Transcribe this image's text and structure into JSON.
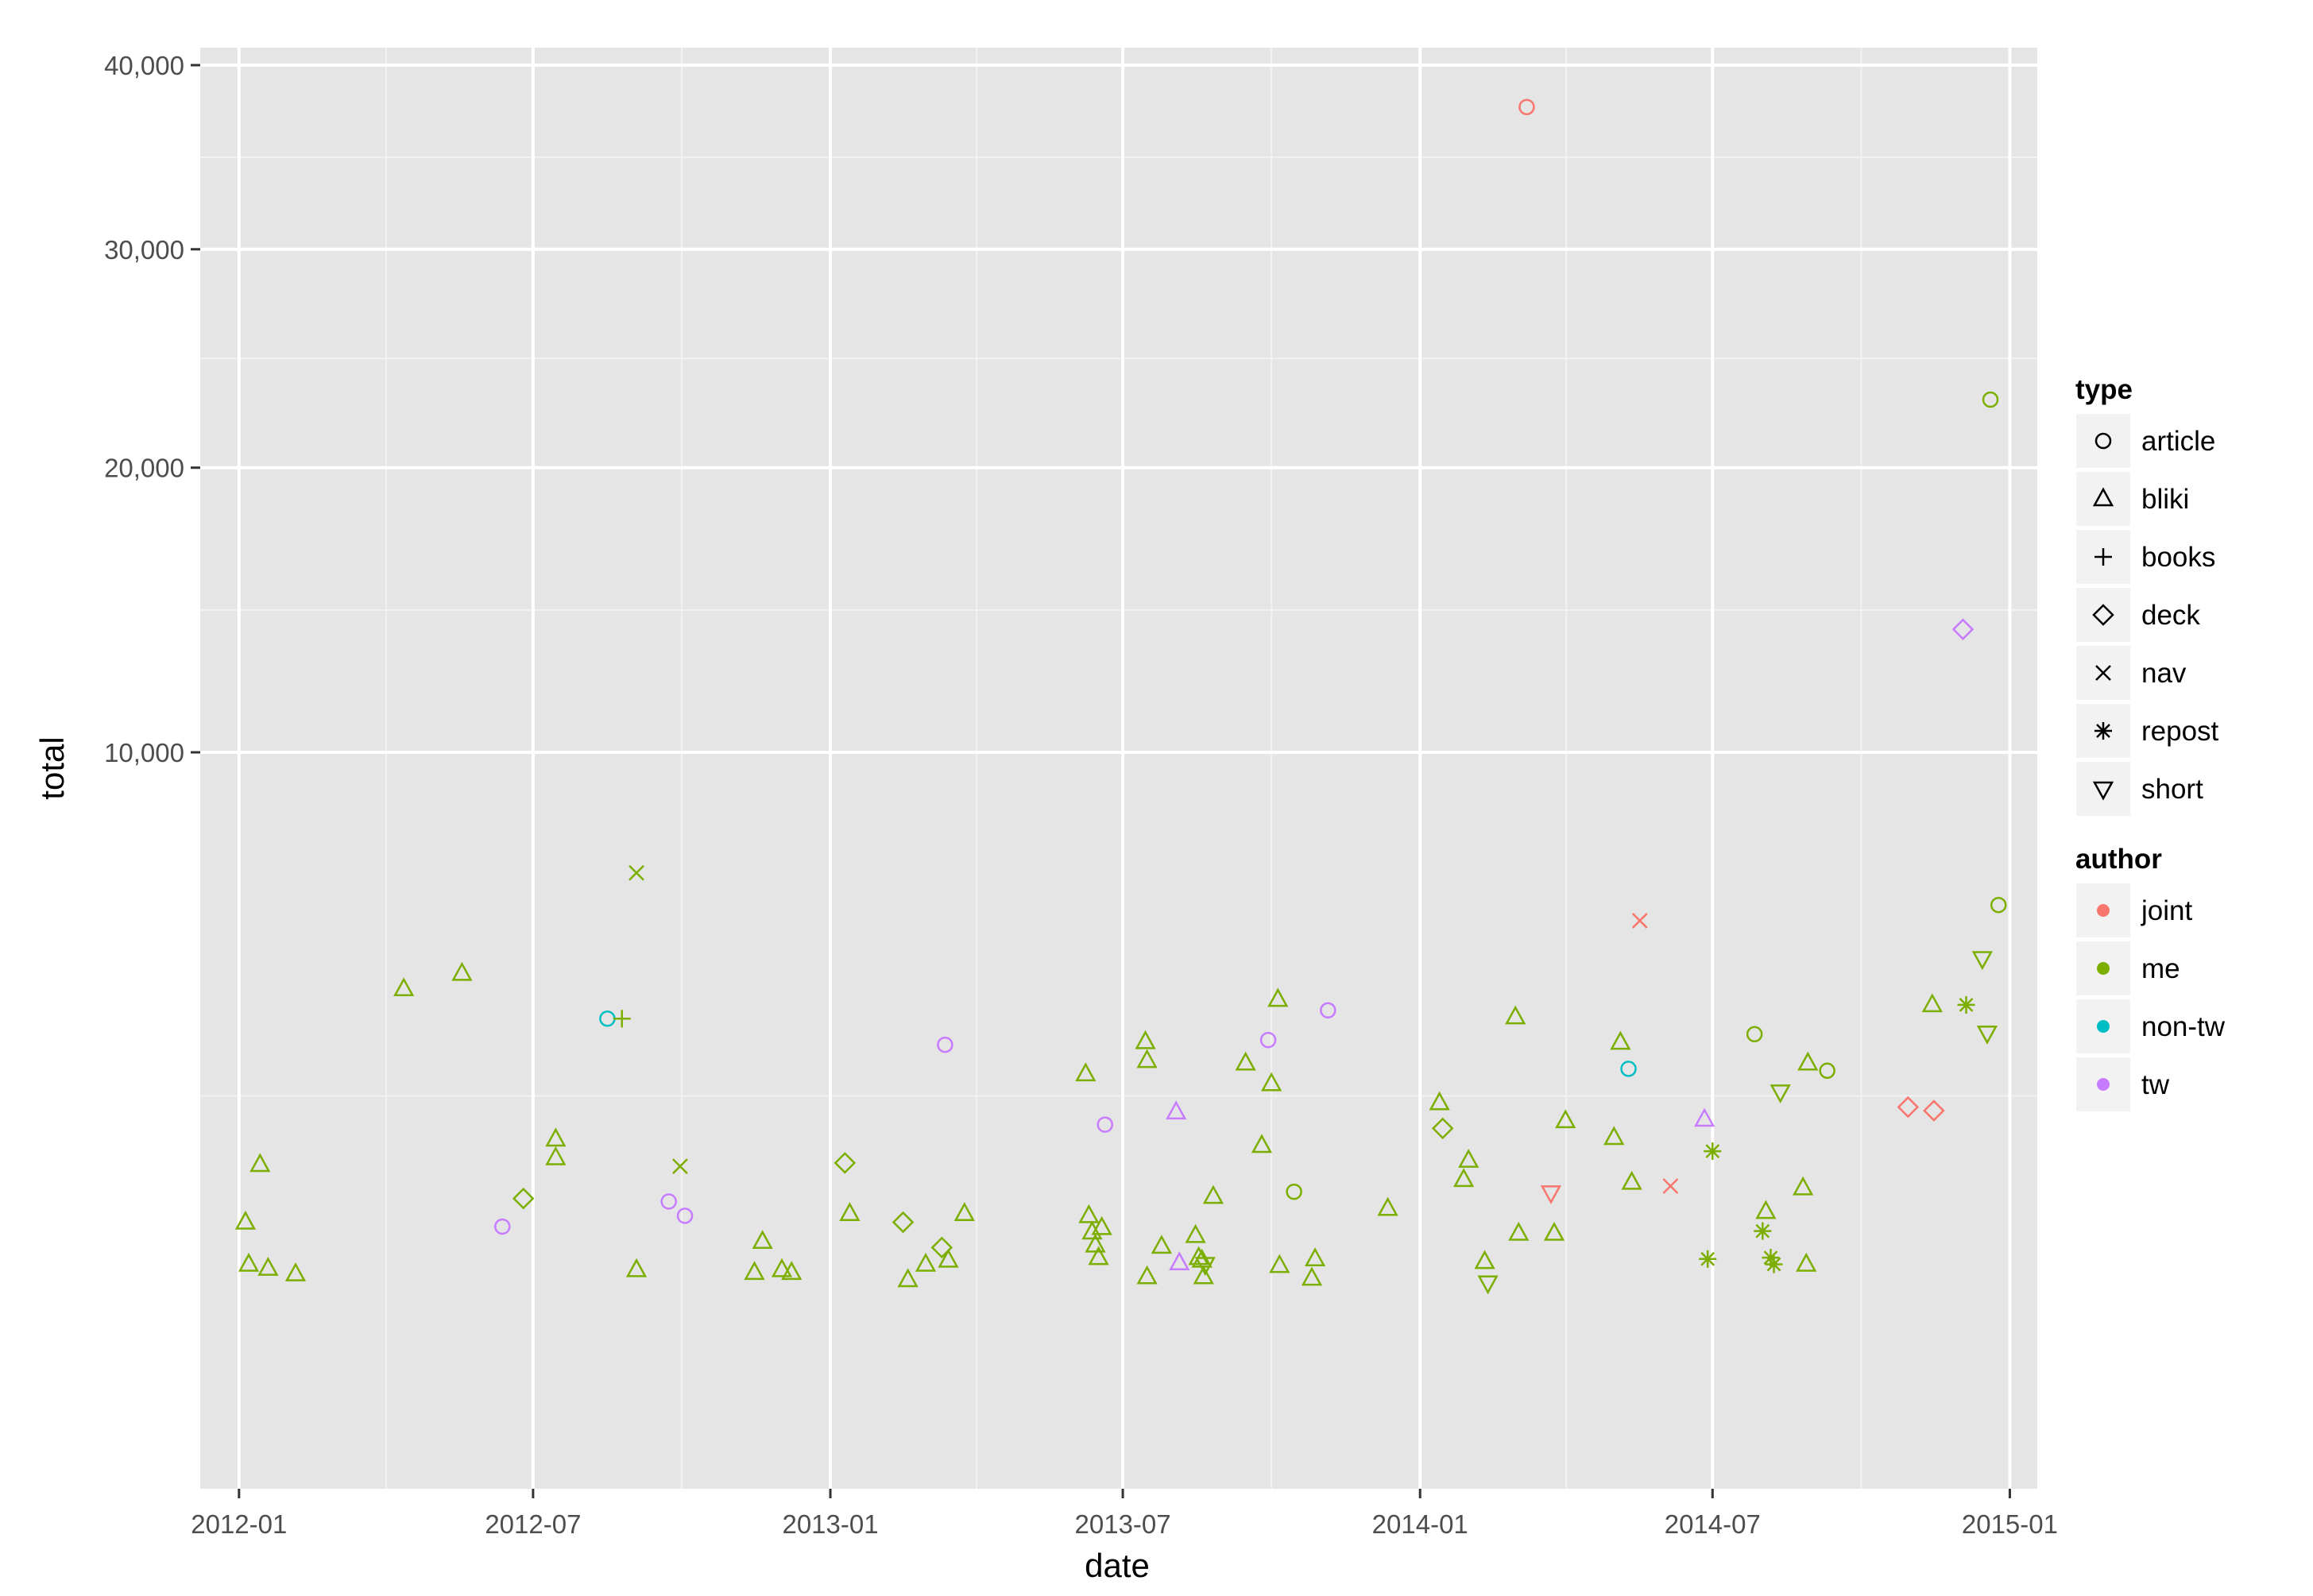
{
  "chart_data": {
    "type": "scatter",
    "title": "",
    "xlabel": "date",
    "ylabel": "total",
    "x_ticks": [
      "2012-01",
      "2012-07",
      "2013-01",
      "2013-07",
      "2014-01",
      "2014-07",
      "2015-01"
    ],
    "y_ticks": [
      "10,000",
      "20,000",
      "30,000",
      "40,000"
    ],
    "y_scale": "sqrt",
    "xlim": [
      "2011-12-08",
      "2015-01-18"
    ],
    "ylim": [
      0,
      40000
    ],
    "grid": true,
    "legend_position": "right",
    "legends": {
      "type": {
        "title": "type",
        "items": [
          {
            "label": "article",
            "shape": "circle"
          },
          {
            "label": "bliki",
            "shape": "triangle"
          },
          {
            "label": "books",
            "shape": "plus"
          },
          {
            "label": "deck",
            "shape": "diamond"
          },
          {
            "label": "nav",
            "shape": "cross"
          },
          {
            "label": "repost",
            "shape": "asterisk"
          },
          {
            "label": "short",
            "shape": "triangle-down"
          }
        ]
      },
      "author": {
        "title": "author",
        "items": [
          {
            "label": "joint",
            "color": "#F8766D"
          },
          {
            "label": "me",
            "color": "#7CAE00"
          },
          {
            "label": "non-tw",
            "color": "#00BFC4"
          },
          {
            "label": "tw",
            "color": "#C77CFF"
          }
        ]
      }
    },
    "points": [
      {
        "date": "2012-01-05",
        "total": 1000,
        "type": "bliki",
        "author": "me"
      },
      {
        "date": "2012-01-07",
        "total": 650,
        "type": "bliki",
        "author": "me"
      },
      {
        "date": "2012-01-14",
        "total": 1600,
        "type": "bliki",
        "author": "me"
      },
      {
        "date": "2012-01-19",
        "total": 620,
        "type": "bliki",
        "author": "me"
      },
      {
        "date": "2012-02-05",
        "total": 580,
        "type": "bliki",
        "author": "me"
      },
      {
        "date": "2012-04-12",
        "total": 4300,
        "type": "bliki",
        "author": "me"
      },
      {
        "date": "2012-05-18",
        "total": 4600,
        "type": "bliki",
        "author": "me"
      },
      {
        "date": "2012-06-12",
        "total": 960,
        "type": "article",
        "author": "tw"
      },
      {
        "date": "2012-06-25",
        "total": 1230,
        "type": "deck",
        "author": "me"
      },
      {
        "date": "2012-07-15",
        "total": 1910,
        "type": "bliki",
        "author": "me"
      },
      {
        "date": "2012-07-15",
        "total": 1680,
        "type": "bliki",
        "author": "me"
      },
      {
        "date": "2012-08-16",
        "total": 3750,
        "type": "article",
        "author": "non-tw"
      },
      {
        "date": "2012-08-25",
        "total": 3750,
        "type": "books",
        "author": "me"
      },
      {
        "date": "2012-09-03",
        "total": 6800,
        "type": "nav",
        "author": "me"
      },
      {
        "date": "2012-09-03",
        "total": 610,
        "type": "bliki",
        "author": "me"
      },
      {
        "date": "2012-09-23",
        "total": 1200,
        "type": "article",
        "author": "tw"
      },
      {
        "date": "2012-09-30",
        "total": 1580,
        "type": "nav",
        "author": "me"
      },
      {
        "date": "2012-10-03",
        "total": 1060,
        "type": "article",
        "author": "tw"
      },
      {
        "date": "2012-11-15",
        "total": 590,
        "type": "bliki",
        "author": "me"
      },
      {
        "date": "2012-11-20",
        "total": 830,
        "type": "bliki",
        "author": "me"
      },
      {
        "date": "2012-12-02",
        "total": 610,
        "type": "bliki",
        "author": "me"
      },
      {
        "date": "2012-12-08",
        "total": 590,
        "type": "bliki",
        "author": "me"
      },
      {
        "date": "2013-01-10",
        "total": 1620,
        "type": "deck",
        "author": "me"
      },
      {
        "date": "2013-01-13",
        "total": 1080,
        "type": "bliki",
        "author": "me"
      },
      {
        "date": "2013-02-15",
        "total": 1000,
        "type": "deck",
        "author": "me"
      },
      {
        "date": "2013-02-18",
        "total": 540,
        "type": "bliki",
        "author": "me"
      },
      {
        "date": "2013-03-01",
        "total": 650,
        "type": "bliki",
        "author": "me"
      },
      {
        "date": "2013-03-11",
        "total": 780,
        "type": "deck",
        "author": "me"
      },
      {
        "date": "2013-03-13",
        "total": 3300,
        "type": "article",
        "author": "tw"
      },
      {
        "date": "2013-03-15",
        "total": 680,
        "type": "bliki",
        "author": "me"
      },
      {
        "date": "2013-03-25",
        "total": 1080,
        "type": "bliki",
        "author": "me"
      },
      {
        "date": "2013-06-08",
        "total": 2830,
        "type": "bliki",
        "author": "me"
      },
      {
        "date": "2013-06-10",
        "total": 1060,
        "type": "bliki",
        "author": "me"
      },
      {
        "date": "2013-06-12",
        "total": 910,
        "type": "bliki",
        "author": "me"
      },
      {
        "date": "2013-06-14",
        "total": 800,
        "type": "bliki",
        "author": "me"
      },
      {
        "date": "2013-06-16",
        "total": 700,
        "type": "bliki",
        "author": "me"
      },
      {
        "date": "2013-06-18",
        "total": 950,
        "type": "bliki",
        "author": "me"
      },
      {
        "date": "2013-06-20",
        "total": 2100,
        "type": "article",
        "author": "tw"
      },
      {
        "date": "2013-07-15",
        "total": 3350,
        "type": "bliki",
        "author": "me"
      },
      {
        "date": "2013-07-16",
        "total": 3040,
        "type": "bliki",
        "author": "me"
      },
      {
        "date": "2013-07-16",
        "total": 560,
        "type": "bliki",
        "author": "me"
      },
      {
        "date": "2013-07-25",
        "total": 790,
        "type": "bliki",
        "author": "me"
      },
      {
        "date": "2013-08-03",
        "total": 2270,
        "type": "bliki",
        "author": "tw"
      },
      {
        "date": "2013-08-05",
        "total": 660,
        "type": "bliki",
        "author": "tw"
      },
      {
        "date": "2013-08-15",
        "total": 880,
        "type": "bliki",
        "author": "me"
      },
      {
        "date": "2013-08-17",
        "total": 700,
        "type": "bliki",
        "author": "me"
      },
      {
        "date": "2013-08-19",
        "total": 680,
        "type": "bliki",
        "author": "me"
      },
      {
        "date": "2013-08-20",
        "total": 560,
        "type": "bliki",
        "author": "me"
      },
      {
        "date": "2013-08-21",
        "total": 650,
        "type": "short",
        "author": "me"
      },
      {
        "date": "2013-08-26",
        "total": 1250,
        "type": "bliki",
        "author": "me"
      },
      {
        "date": "2013-09-15",
        "total": 3000,
        "type": "bliki",
        "author": "me"
      },
      {
        "date": "2013-09-25",
        "total": 1830,
        "type": "bliki",
        "author": "me"
      },
      {
        "date": "2013-09-29",
        "total": 3380,
        "type": "article",
        "author": "tw"
      },
      {
        "date": "2013-10-01",
        "total": 2680,
        "type": "bliki",
        "author": "me"
      },
      {
        "date": "2013-10-05",
        "total": 4100,
        "type": "bliki",
        "author": "me"
      },
      {
        "date": "2013-10-06",
        "total": 640,
        "type": "bliki",
        "author": "me"
      },
      {
        "date": "2013-10-15",
        "total": 1300,
        "type": "article",
        "author": "me"
      },
      {
        "date": "2013-10-26",
        "total": 550,
        "type": "bliki",
        "author": "me"
      },
      {
        "date": "2013-10-28",
        "total": 690,
        "type": "bliki",
        "author": "me"
      },
      {
        "date": "2013-11-05",
        "total": 3900,
        "type": "article",
        "author": "tw"
      },
      {
        "date": "2013-12-12",
        "total": 1130,
        "type": "bliki",
        "author": "me"
      },
      {
        "date": "2014-01-13",
        "total": 2400,
        "type": "bliki",
        "author": "me"
      },
      {
        "date": "2014-01-15",
        "total": 2050,
        "type": "deck",
        "author": "me"
      },
      {
        "date": "2014-01-28",
        "total": 1430,
        "type": "bliki",
        "author": "me"
      },
      {
        "date": "2014-01-31",
        "total": 1650,
        "type": "bliki",
        "author": "me"
      },
      {
        "date": "2014-02-10",
        "total": 670,
        "type": "bliki",
        "author": "me"
      },
      {
        "date": "2014-02-12",
        "total": 520,
        "type": "short",
        "author": "me"
      },
      {
        "date": "2014-03-01",
        "total": 3780,
        "type": "bliki",
        "author": "me"
      },
      {
        "date": "2014-03-03",
        "total": 900,
        "type": "bliki",
        "author": "me"
      },
      {
        "date": "2014-03-08",
        "total": 37600,
        "type": "article",
        "author": "joint"
      },
      {
        "date": "2014-03-23",
        "total": 1290,
        "type": "short",
        "author": "joint"
      },
      {
        "date": "2014-03-25",
        "total": 900,
        "type": "bliki",
        "author": "me"
      },
      {
        "date": "2014-04-01",
        "total": 2150,
        "type": "bliki",
        "author": "me"
      },
      {
        "date": "2014-05-01",
        "total": 1930,
        "type": "bliki",
        "author": "me"
      },
      {
        "date": "2014-05-05",
        "total": 3340,
        "type": "bliki",
        "author": "me"
      },
      {
        "date": "2014-05-10",
        "total": 2910,
        "type": "article",
        "author": "non-tw"
      },
      {
        "date": "2014-05-12",
        "total": 1400,
        "type": "bliki",
        "author": "me"
      },
      {
        "date": "2014-05-17",
        "total": 5700,
        "type": "nav",
        "author": "joint"
      },
      {
        "date": "2014-06-05",
        "total": 1360,
        "type": "nav",
        "author": "joint"
      },
      {
        "date": "2014-06-26",
        "total": 2170,
        "type": "bliki",
        "author": "tw"
      },
      {
        "date": "2014-06-28",
        "total": 690,
        "type": "repost",
        "author": "me"
      },
      {
        "date": "2014-07-01",
        "total": 1760,
        "type": "repost",
        "author": "me"
      },
      {
        "date": "2014-07-27",
        "total": 3480,
        "type": "article",
        "author": "me"
      },
      {
        "date": "2014-08-01",
        "total": 920,
        "type": "repost",
        "author": "me"
      },
      {
        "date": "2014-08-03",
        "total": 1100,
        "type": "bliki",
        "author": "me"
      },
      {
        "date": "2014-08-06",
        "total": 700,
        "type": "repost",
        "author": "me"
      },
      {
        "date": "2014-08-08",
        "total": 650,
        "type": "repost",
        "author": "me"
      },
      {
        "date": "2014-08-12",
        "total": 2560,
        "type": "short",
        "author": "me"
      },
      {
        "date": "2014-08-26",
        "total": 1340,
        "type": "bliki",
        "author": "me"
      },
      {
        "date": "2014-08-28",
        "total": 650,
        "type": "bliki",
        "author": "me"
      },
      {
        "date": "2014-08-29",
        "total": 3000,
        "type": "bliki",
        "author": "me"
      },
      {
        "date": "2014-09-10",
        "total": 2880,
        "type": "article",
        "author": "me"
      },
      {
        "date": "2014-10-30",
        "total": 2340,
        "type": "deck",
        "author": "joint"
      },
      {
        "date": "2014-11-14",
        "total": 4000,
        "type": "bliki",
        "author": "me"
      },
      {
        "date": "2014-11-15",
        "total": 2290,
        "type": "deck",
        "author": "joint"
      },
      {
        "date": "2014-12-03",
        "total": 13900,
        "type": "deck",
        "author": "tw"
      },
      {
        "date": "2014-12-05",
        "total": 4000,
        "type": "repost",
        "author": "me"
      },
      {
        "date": "2014-12-15",
        "total": 4900,
        "type": "short",
        "author": "me"
      },
      {
        "date": "2014-12-18",
        "total": 3500,
        "type": "short",
        "author": "me"
      },
      {
        "date": "2014-12-20",
        "total": 22900,
        "type": "article",
        "author": "me"
      },
      {
        "date": "2014-12-25",
        "total": 6050,
        "type": "article",
        "author": "me"
      }
    ]
  }
}
